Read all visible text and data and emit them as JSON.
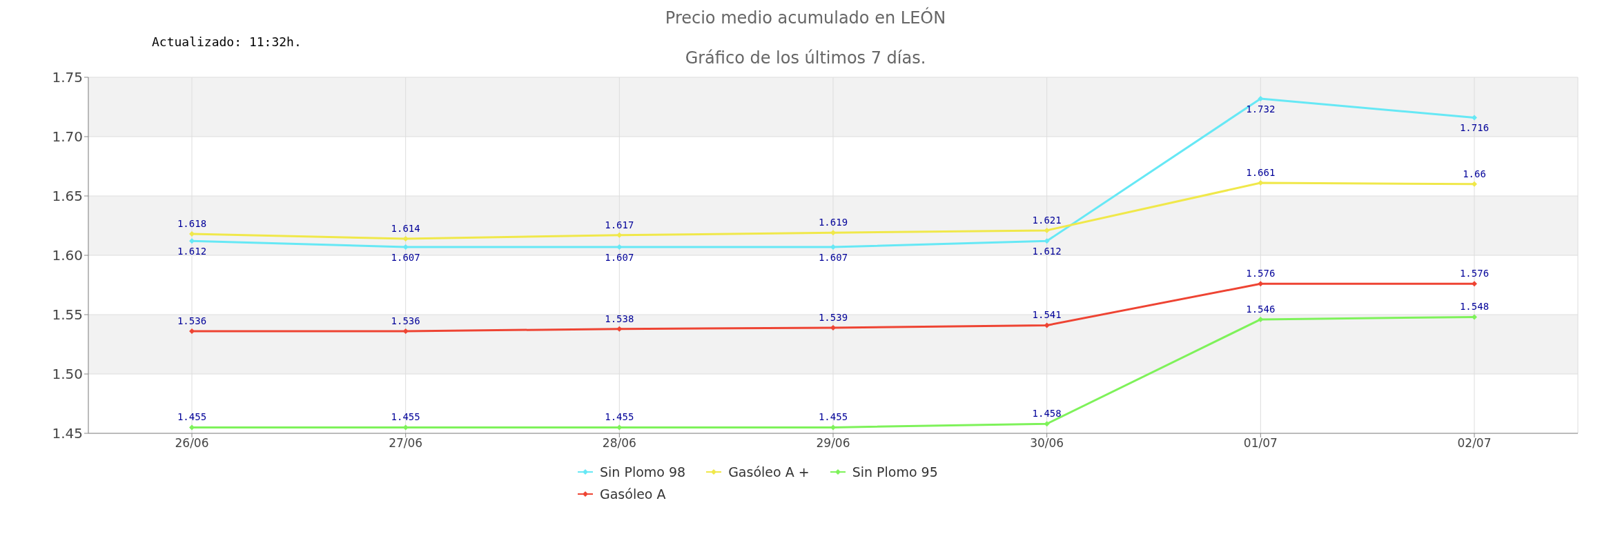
{
  "chart_data": {
    "type": "line",
    "title": "Precio medio acumulado en LEÓN",
    "subtitle": "Gráfico de los últimos 7 días.",
    "annotations": [
      "Actualizado: 11:32h."
    ],
    "categories": [
      "26/06",
      "27/06",
      "28/06",
      "29/06",
      "30/06",
      "01/07",
      "02/07"
    ],
    "series": [
      {
        "name": "Sin Plomo 98",
        "color": "#66e8f5",
        "values": [
          1.612,
          1.607,
          1.607,
          1.607,
          1.612,
          1.732,
          1.716
        ]
      },
      {
        "name": "Gasóleo A +",
        "color": "#f0e84a",
        "values": [
          1.618,
          1.614,
          1.617,
          1.619,
          1.621,
          1.661,
          1.66
        ]
      },
      {
        "name": "Sin Plomo 95",
        "color": "#7ef25a",
        "values": [
          1.455,
          1.455,
          1.455,
          1.455,
          1.458,
          1.546,
          1.548
        ]
      },
      {
        "name": "Gasóleo A",
        "color": "#ee4433",
        "values": [
          1.536,
          1.536,
          1.538,
          1.539,
          1.541,
          1.576,
          1.576
        ]
      }
    ],
    "ylim": [
      1.45,
      1.75
    ],
    "yticks": [
      1.45,
      {
        "value": 1.5,
        "label": "1.50"
      },
      1.55,
      {
        "value": 1.6,
        "label": "1.60"
      },
      1.65,
      {
        "value": 1.7,
        "label": "1.70"
      },
      1.75
    ],
    "grid": true,
    "legend": "bottom",
    "marker": "diamond",
    "line_style": "solid",
    "data_labels": true
  }
}
